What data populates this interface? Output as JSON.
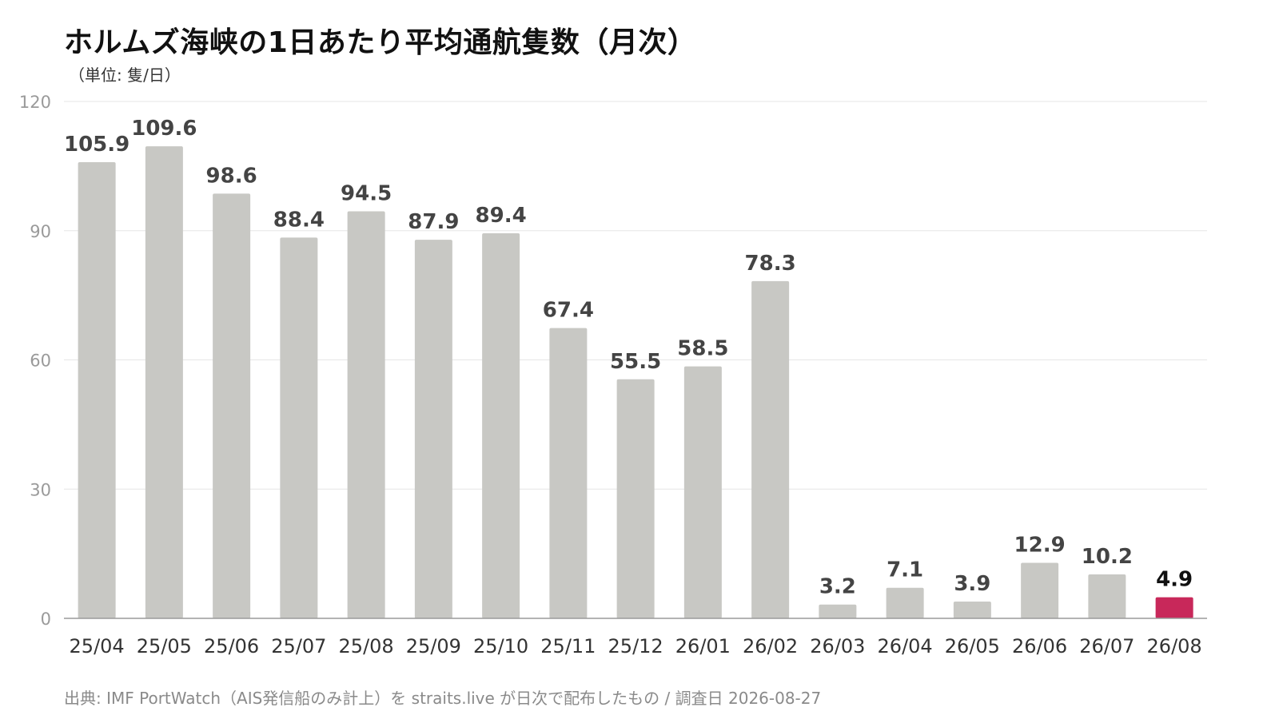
{
  "header": {
    "title": "ホルムズ海峡の1日あたり平均通航隻数（月次）",
    "unit": "（単位: 隻/日）"
  },
  "footer": {
    "source": "出典: IMF PortWatch（AIS発信船のみ計上）を straits.live が日次で配布したもの / 調査日 2026-08-27"
  },
  "colors": {
    "bar": "#c8c8c4",
    "highlight": "#c8285a",
    "grid": "#e6e6e6",
    "axis": "#9a9a9a"
  },
  "chart_data": {
    "type": "bar",
    "title": "ホルムズ海峡の1日あたり平均通航隻数（月次）",
    "ylabel": "（単位: 隻/日）",
    "xlabel": "",
    "ylim": [
      0,
      120
    ],
    "yticks": [
      0,
      30,
      60,
      90,
      120
    ],
    "grid": true,
    "categories": [
      "25/04",
      "25/05",
      "25/06",
      "25/07",
      "25/08",
      "25/09",
      "25/10",
      "25/11",
      "25/12",
      "26/01",
      "26/02",
      "26/03",
      "26/04",
      "26/05",
      "26/06",
      "26/07",
      "26/08"
    ],
    "values": [
      105.9,
      109.6,
      98.6,
      88.4,
      94.5,
      87.9,
      89.4,
      67.4,
      55.5,
      58.5,
      78.3,
      3.2,
      7.1,
      3.9,
      12.9,
      10.2,
      4.9
    ],
    "highlight_category": "26/08"
  }
}
